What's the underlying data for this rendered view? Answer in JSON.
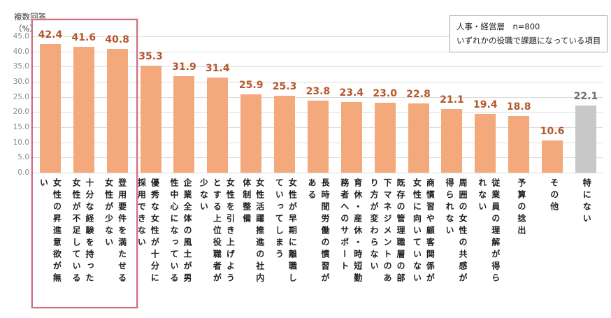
{
  "legend": {
    "line1": "人事・経営層　n=800",
    "line2": "いずれかの役職で課題になっている項目"
  },
  "chart_data": {
    "type": "bar",
    "title": "",
    "xlabel": "",
    "ylabel": "複数回答\n（%）",
    "ylim": [
      0,
      45
    ],
    "yticks": [
      45,
      40,
      35,
      30,
      25,
      20,
      15,
      10,
      5,
      0
    ],
    "grid": "horizontal",
    "legend_position": "top-right",
    "categories": [
      "女性の昇進意欲が無\nい",
      "十分な経験を持った\n女性が不足している",
      "登用要件を満たせる\n女性が少ない",
      "優秀な女性が十分に\n採用できない",
      "企業全体の風土が男\n性中心になっている",
      "女性を引き上げよう\nとする上位役職者が\n少ない",
      "女性活躍推進の社内\n体制整備",
      "女性が早期に離職し\nていってしまう",
      "長時間労働の慣習が\nある",
      "育休・産休・時短勤\n務者へのサポート",
      "既存の管理職層の部\n下マネジメントのあ\nり方が変わらない",
      "商慣習や顧客関係が\n女性に向いていない",
      "周囲の女性の共感が\n得られない",
      "従業員の理解が得ら\nれない",
      "予算の捻出",
      "その他",
      "特にない"
    ],
    "values": [
      42.4,
      41.6,
      40.8,
      35.3,
      31.9,
      31.4,
      25.9,
      25.3,
      23.8,
      23.4,
      23.0,
      22.8,
      21.1,
      19.4,
      18.8,
      10.6,
      22.1
    ],
    "muted_indices": [
      16
    ],
    "highlight_box_indices": [
      0,
      1,
      2
    ],
    "colors": {
      "bar": "#F3A97C",
      "muted_bar": "#C8C8C8",
      "value_label": "#B5562B",
      "muted_value_label": "#6F6F6F",
      "highlight_box": "#CF7183",
      "gridline": "#DCDCDC"
    }
  }
}
